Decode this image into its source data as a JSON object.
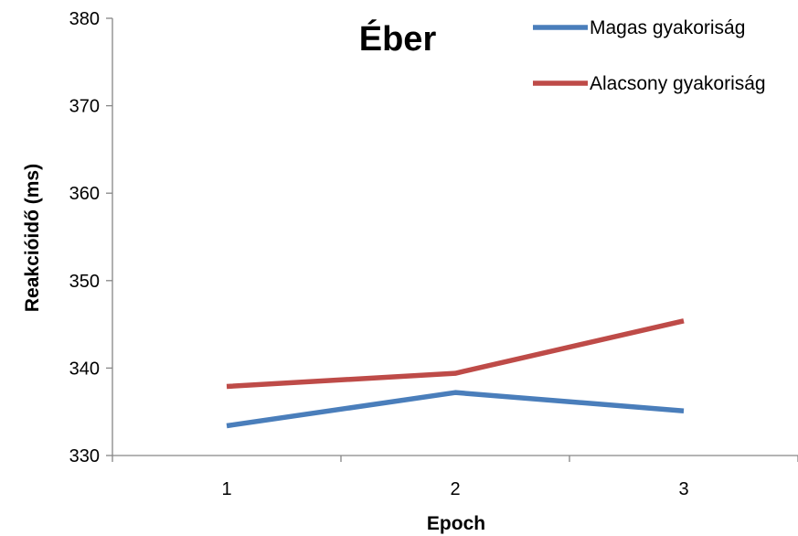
{
  "chart_data": {
    "type": "line",
    "title": "Éber",
    "xlabel": "Epoch",
    "ylabel": "Reakcióidő (ms)",
    "x": [
      1,
      2,
      3
    ],
    "x_tick_labels": [
      "1",
      "2",
      "3"
    ],
    "ylim": [
      330,
      380
    ],
    "y_ticks": [
      330,
      340,
      350,
      360,
      370,
      380
    ],
    "grid": false,
    "legend_position": "top-right",
    "series": [
      {
        "name": "Magas gyakoriság",
        "color": "#4a7ebb",
        "values": [
          333.4,
          337.2,
          335.1
        ]
      },
      {
        "name": "Alacsony gyakoriság",
        "color": "#be4b48",
        "values": [
          337.9,
          339.4,
          345.4
        ]
      }
    ]
  }
}
